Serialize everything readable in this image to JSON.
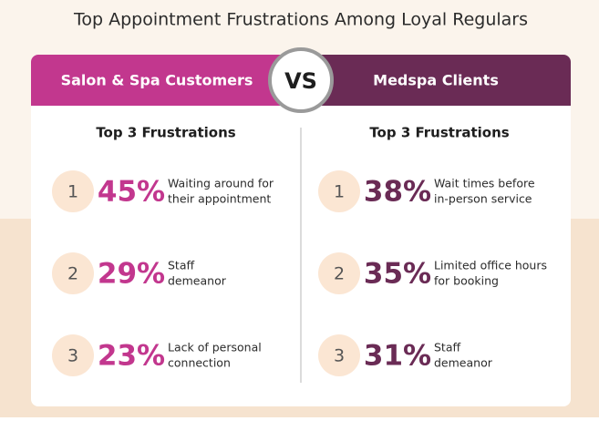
{
  "title": "Top Appointment Frustrations Among Loyal Regulars",
  "vs": "VS",
  "panels": [
    {
      "header": "Salon & Spa Customers",
      "subtitle": "Top 3 Frustrations",
      "color": "#c2378e",
      "items": [
        {
          "rank": 1,
          "percent": "45%",
          "text": [
            "Waiting around for",
            "their appointment"
          ]
        },
        {
          "rank": 2,
          "percent": "29%",
          "text": [
            "Staff",
            "demeanor"
          ]
        },
        {
          "rank": 3,
          "percent": "23%",
          "text": [
            "Lack of personal",
            "connection"
          ]
        }
      ]
    },
    {
      "header": "Medspa Clients",
      "subtitle": "Top 3 Frustrations",
      "color": "#6a2b55",
      "items": [
        {
          "rank": 1,
          "percent": "38%",
          "text": [
            "Wait times before",
            "in-person service"
          ]
        },
        {
          "rank": 2,
          "percent": "35%",
          "text": [
            "Limited office hours",
            "for booking"
          ]
        },
        {
          "rank": 3,
          "percent": "31%",
          "text": [
            "Staff",
            "demeanor"
          ]
        }
      ]
    }
  ]
}
